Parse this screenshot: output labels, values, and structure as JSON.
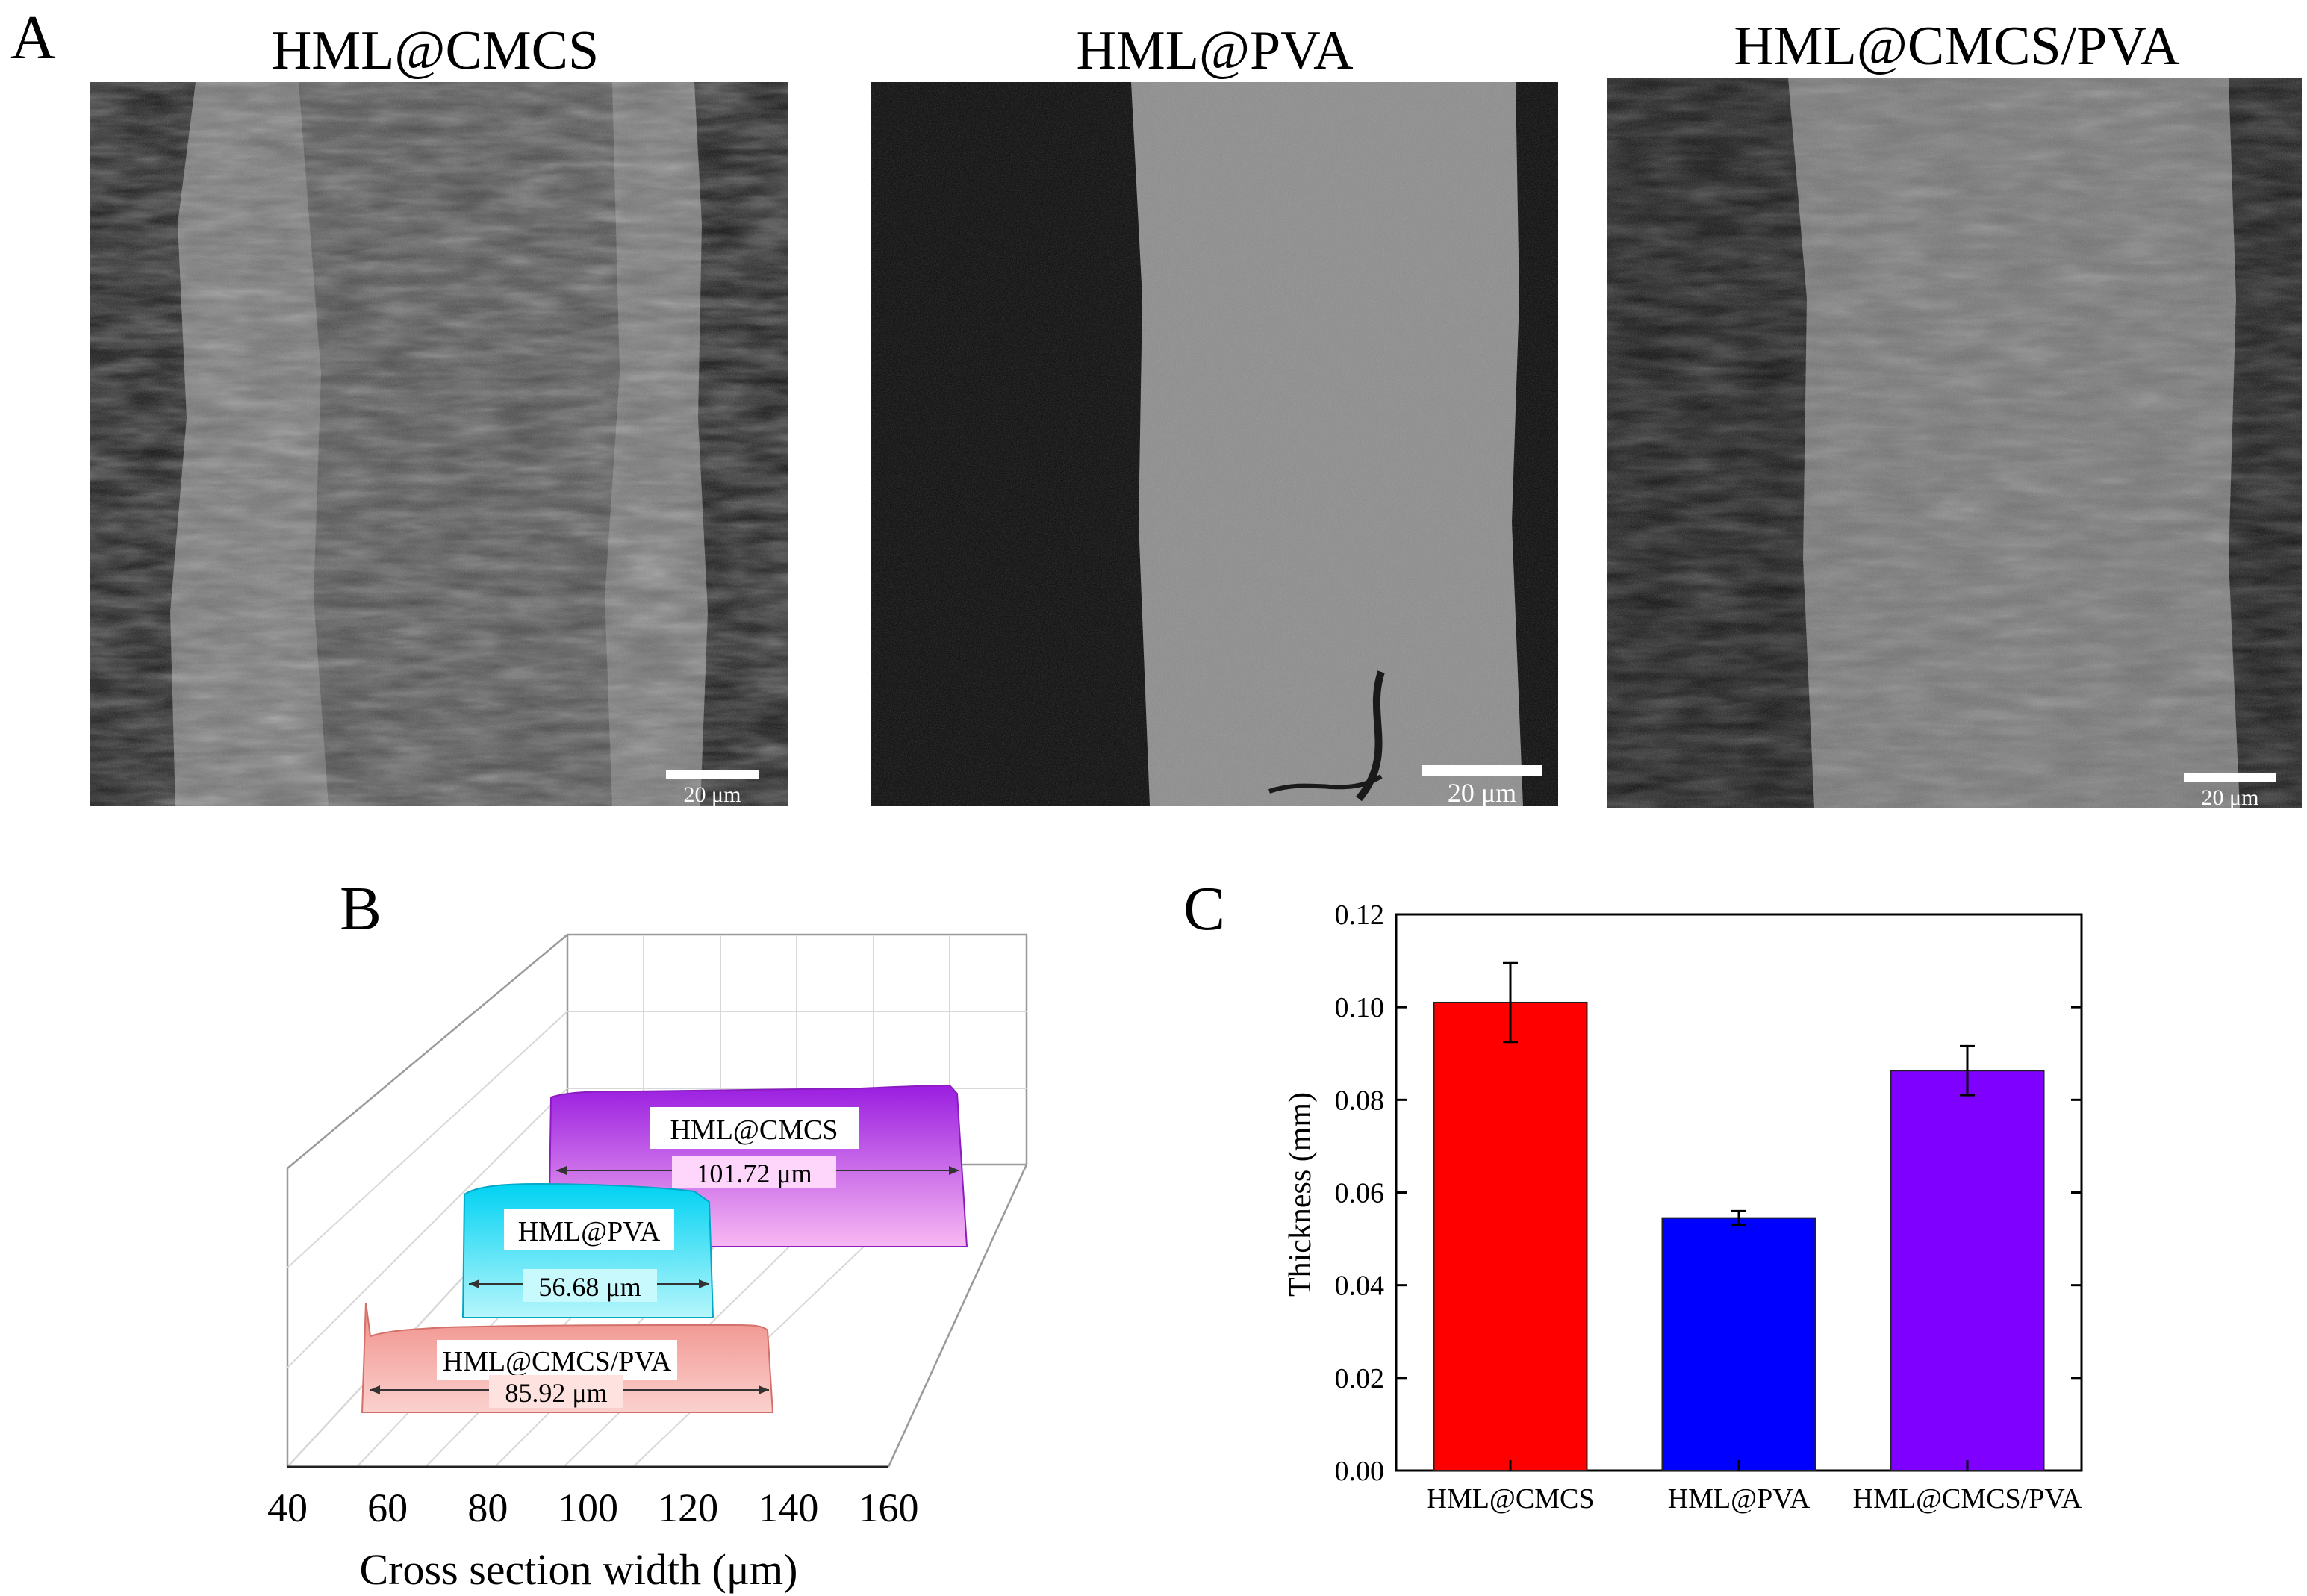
{
  "panel_a": {
    "letter": "A",
    "images": [
      {
        "title": "HML@CMCS",
        "scale_bar": "20 μm"
      },
      {
        "title": "HML@PVA",
        "scale_bar": "20 μm"
      },
      {
        "title": "HML@CMCS/PVA",
        "scale_bar": "20 μm"
      }
    ]
  },
  "chart_data": [
    {
      "type": "area",
      "panel": "B",
      "xlabel": "Cross section width (μm)",
      "x_ticks": [
        "40",
        "60",
        "80",
        "100",
        "120",
        "140",
        "160"
      ],
      "xlim": [
        40,
        160
      ],
      "series": [
        {
          "name": "HML@CMCS",
          "width": "101.72 μm",
          "color": "#b633e8"
        },
        {
          "name": "HML@PVA",
          "width": "56.68 μm",
          "color": "#17d9f0"
        },
        {
          "name": "HML@CMCS/PVA",
          "width": "85.92 μm",
          "color": "#f4a6a1"
        }
      ]
    },
    {
      "type": "bar",
      "panel": "C",
      "categories": [
        "HML@CMCS",
        "HML@PVA",
        "HML@CMCS/PVA"
      ],
      "values": [
        0.101,
        0.0545,
        0.0863
      ],
      "errors": [
        0.0085,
        0.0015,
        0.0053
      ],
      "colors": [
        "#ff0000",
        "#0000ff",
        "#8000ff"
      ],
      "ylabel": "Thickness (mm)",
      "ylim": [
        0,
        0.12
      ],
      "y_ticks": [
        "0.00",
        "0.02",
        "0.04",
        "0.06",
        "0.08",
        "0.10",
        "0.12"
      ]
    }
  ]
}
